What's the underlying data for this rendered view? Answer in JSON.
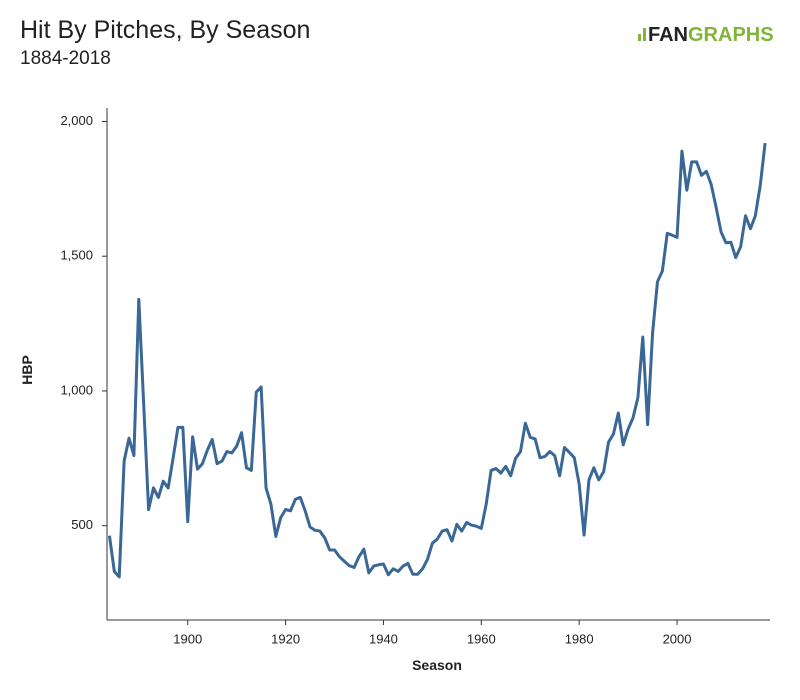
{
  "chart_data": {
    "type": "line",
    "title": "Hit By Pitches, By Season",
    "subtitle": "1884-2018",
    "logo": [
      "FAN",
      "GRAPHS"
    ],
    "x_label": "Season",
    "y_label": "HBP",
    "color": "#3a6896",
    "xlim": [
      1883.5,
      2019
    ],
    "xticks": [
      1900,
      1920,
      1940,
      1960,
      1980,
      2000
    ],
    "ylim": [
      150,
      2050
    ],
    "yticks": [
      500,
      {
        "value": 1000,
        "label": "1,000"
      },
      {
        "value": 1500,
        "label": "1,500"
      },
      {
        "value": 2000,
        "label": "2,000"
      }
    ],
    "x": [
      1884,
      1885,
      1886,
      1887,
      1888,
      1889,
      1890,
      1891,
      1892,
      1893,
      1894,
      1895,
      1896,
      1897,
      1898,
      1899,
      1900,
      1901,
      1902,
      1903,
      1904,
      1905,
      1906,
      1907,
      1908,
      1909,
      1910,
      1911,
      1912,
      1913,
      1914,
      1915,
      1916,
      1917,
      1918,
      1919,
      1920,
      1921,
      1922,
      1923,
      1924,
      1925,
      1926,
      1927,
      1928,
      1929,
      1930,
      1931,
      1932,
      1933,
      1934,
      1935,
      1936,
      1937,
      1938,
      1939,
      1940,
      1941,
      1942,
      1943,
      1944,
      1945,
      1946,
      1947,
      1948,
      1949,
      1950,
      1951,
      1952,
      1953,
      1954,
      1955,
      1956,
      1957,
      1958,
      1959,
      1960,
      1961,
      1962,
      1963,
      1964,
      1965,
      1966,
      1967,
      1968,
      1969,
      1970,
      1971,
      1972,
      1973,
      1974,
      1975,
      1976,
      1977,
      1978,
      1979,
      1980,
      1981,
      1982,
      1983,
      1984,
      1985,
      1986,
      1987,
      1988,
      1989,
      1990,
      1991,
      1992,
      1993,
      1994,
      1995,
      1996,
      1997,
      1998,
      1999,
      2000,
      2001,
      2002,
      2003,
      2004,
      2005,
      2006,
      2007,
      2008,
      2009,
      2010,
      2011,
      2012,
      2013,
      2014,
      2015,
      2016,
      2017,
      2018
    ],
    "values": [
      463,
      330,
      310,
      740,
      825,
      760,
      1340,
      950,
      560,
      640,
      605,
      665,
      640,
      750,
      865,
      865,
      515,
      830,
      710,
      730,
      780,
      820,
      730,
      740,
      775,
      770,
      795,
      845,
      715,
      705,
      995,
      1015,
      640,
      580,
      460,
      530,
      560,
      555,
      598,
      605,
      555,
      495,
      483,
      480,
      455,
      410,
      410,
      385,
      368,
      352,
      345,
      385,
      413,
      325,
      350,
      355,
      358,
      318,
      340,
      330,
      350,
      360,
      320,
      320,
      340,
      375,
      435,
      450,
      480,
      485,
      443,
      505,
      480,
      512,
      502,
      498,
      490,
      580,
      705,
      712,
      695,
      720,
      685,
      750,
      775,
      880,
      828,
      822,
      752,
      757,
      775,
      760,
      685,
      790,
      772,
      752,
      655,
      465,
      670,
      715,
      670,
      700,
      810,
      840,
      918,
      800,
      858,
      900,
      975,
      1200,
      875,
      1215,
      1405,
      1445,
      1585,
      1578,
      1570,
      1890,
      1745,
      1850,
      1850,
      1800,
      1815,
      1765,
      1680,
      1590,
      1550,
      1552,
      1495,
      1535,
      1650,
      1602,
      1650,
      1762,
      1920
    ]
  }
}
